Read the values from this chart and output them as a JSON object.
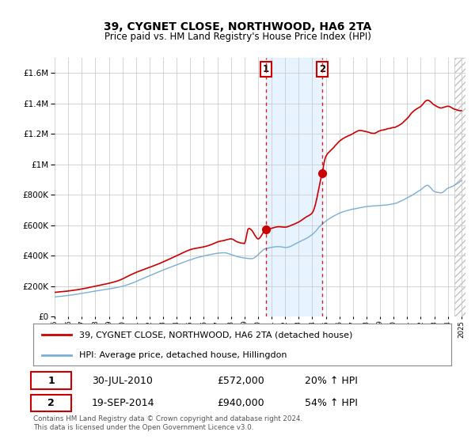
{
  "title": "39, CYGNET CLOSE, NORTHWOOD, HA6 2TA",
  "subtitle": "Price paid vs. HM Land Registry's House Price Index (HPI)",
  "ylim": [
    0,
    1700000
  ],
  "yticks": [
    0,
    200000,
    400000,
    600000,
    800000,
    1000000,
    1200000,
    1400000,
    1600000
  ],
  "ytick_labels": [
    "£0",
    "£200K",
    "£400K",
    "£600K",
    "£800K",
    "£1M",
    "£1.2M",
    "£1.4M",
    "£1.6M"
  ],
  "xmin": 1995,
  "xmax": 2025,
  "sale1_date": 2010.58,
  "sale1_price": 572000,
  "sale1_label": "30-JUL-2010",
  "sale1_price_label": "£572,000",
  "sale1_hpi_label": "20% ↑ HPI",
  "sale2_date": 2014.72,
  "sale2_price": 940000,
  "sale2_label": "19-SEP-2014",
  "sale2_price_label": "£940,000",
  "sale2_hpi_label": "54% ↑ HPI",
  "legend_line1": "39, CYGNET CLOSE, NORTHWOOD, HA6 2TA (detached house)",
  "legend_line2": "HPI: Average price, detached house, Hillingdon",
  "footnote": "Contains HM Land Registry data © Crown copyright and database right 2024.\nThis data is licensed under the Open Government Licence v3.0.",
  "line_color_red": "#cc0000",
  "line_color_blue": "#7aaed6",
  "bg_color": "#ffffff",
  "grid_color": "#cccccc",
  "shaded_color": "#ddeeff",
  "hatch_start": 2024.5
}
